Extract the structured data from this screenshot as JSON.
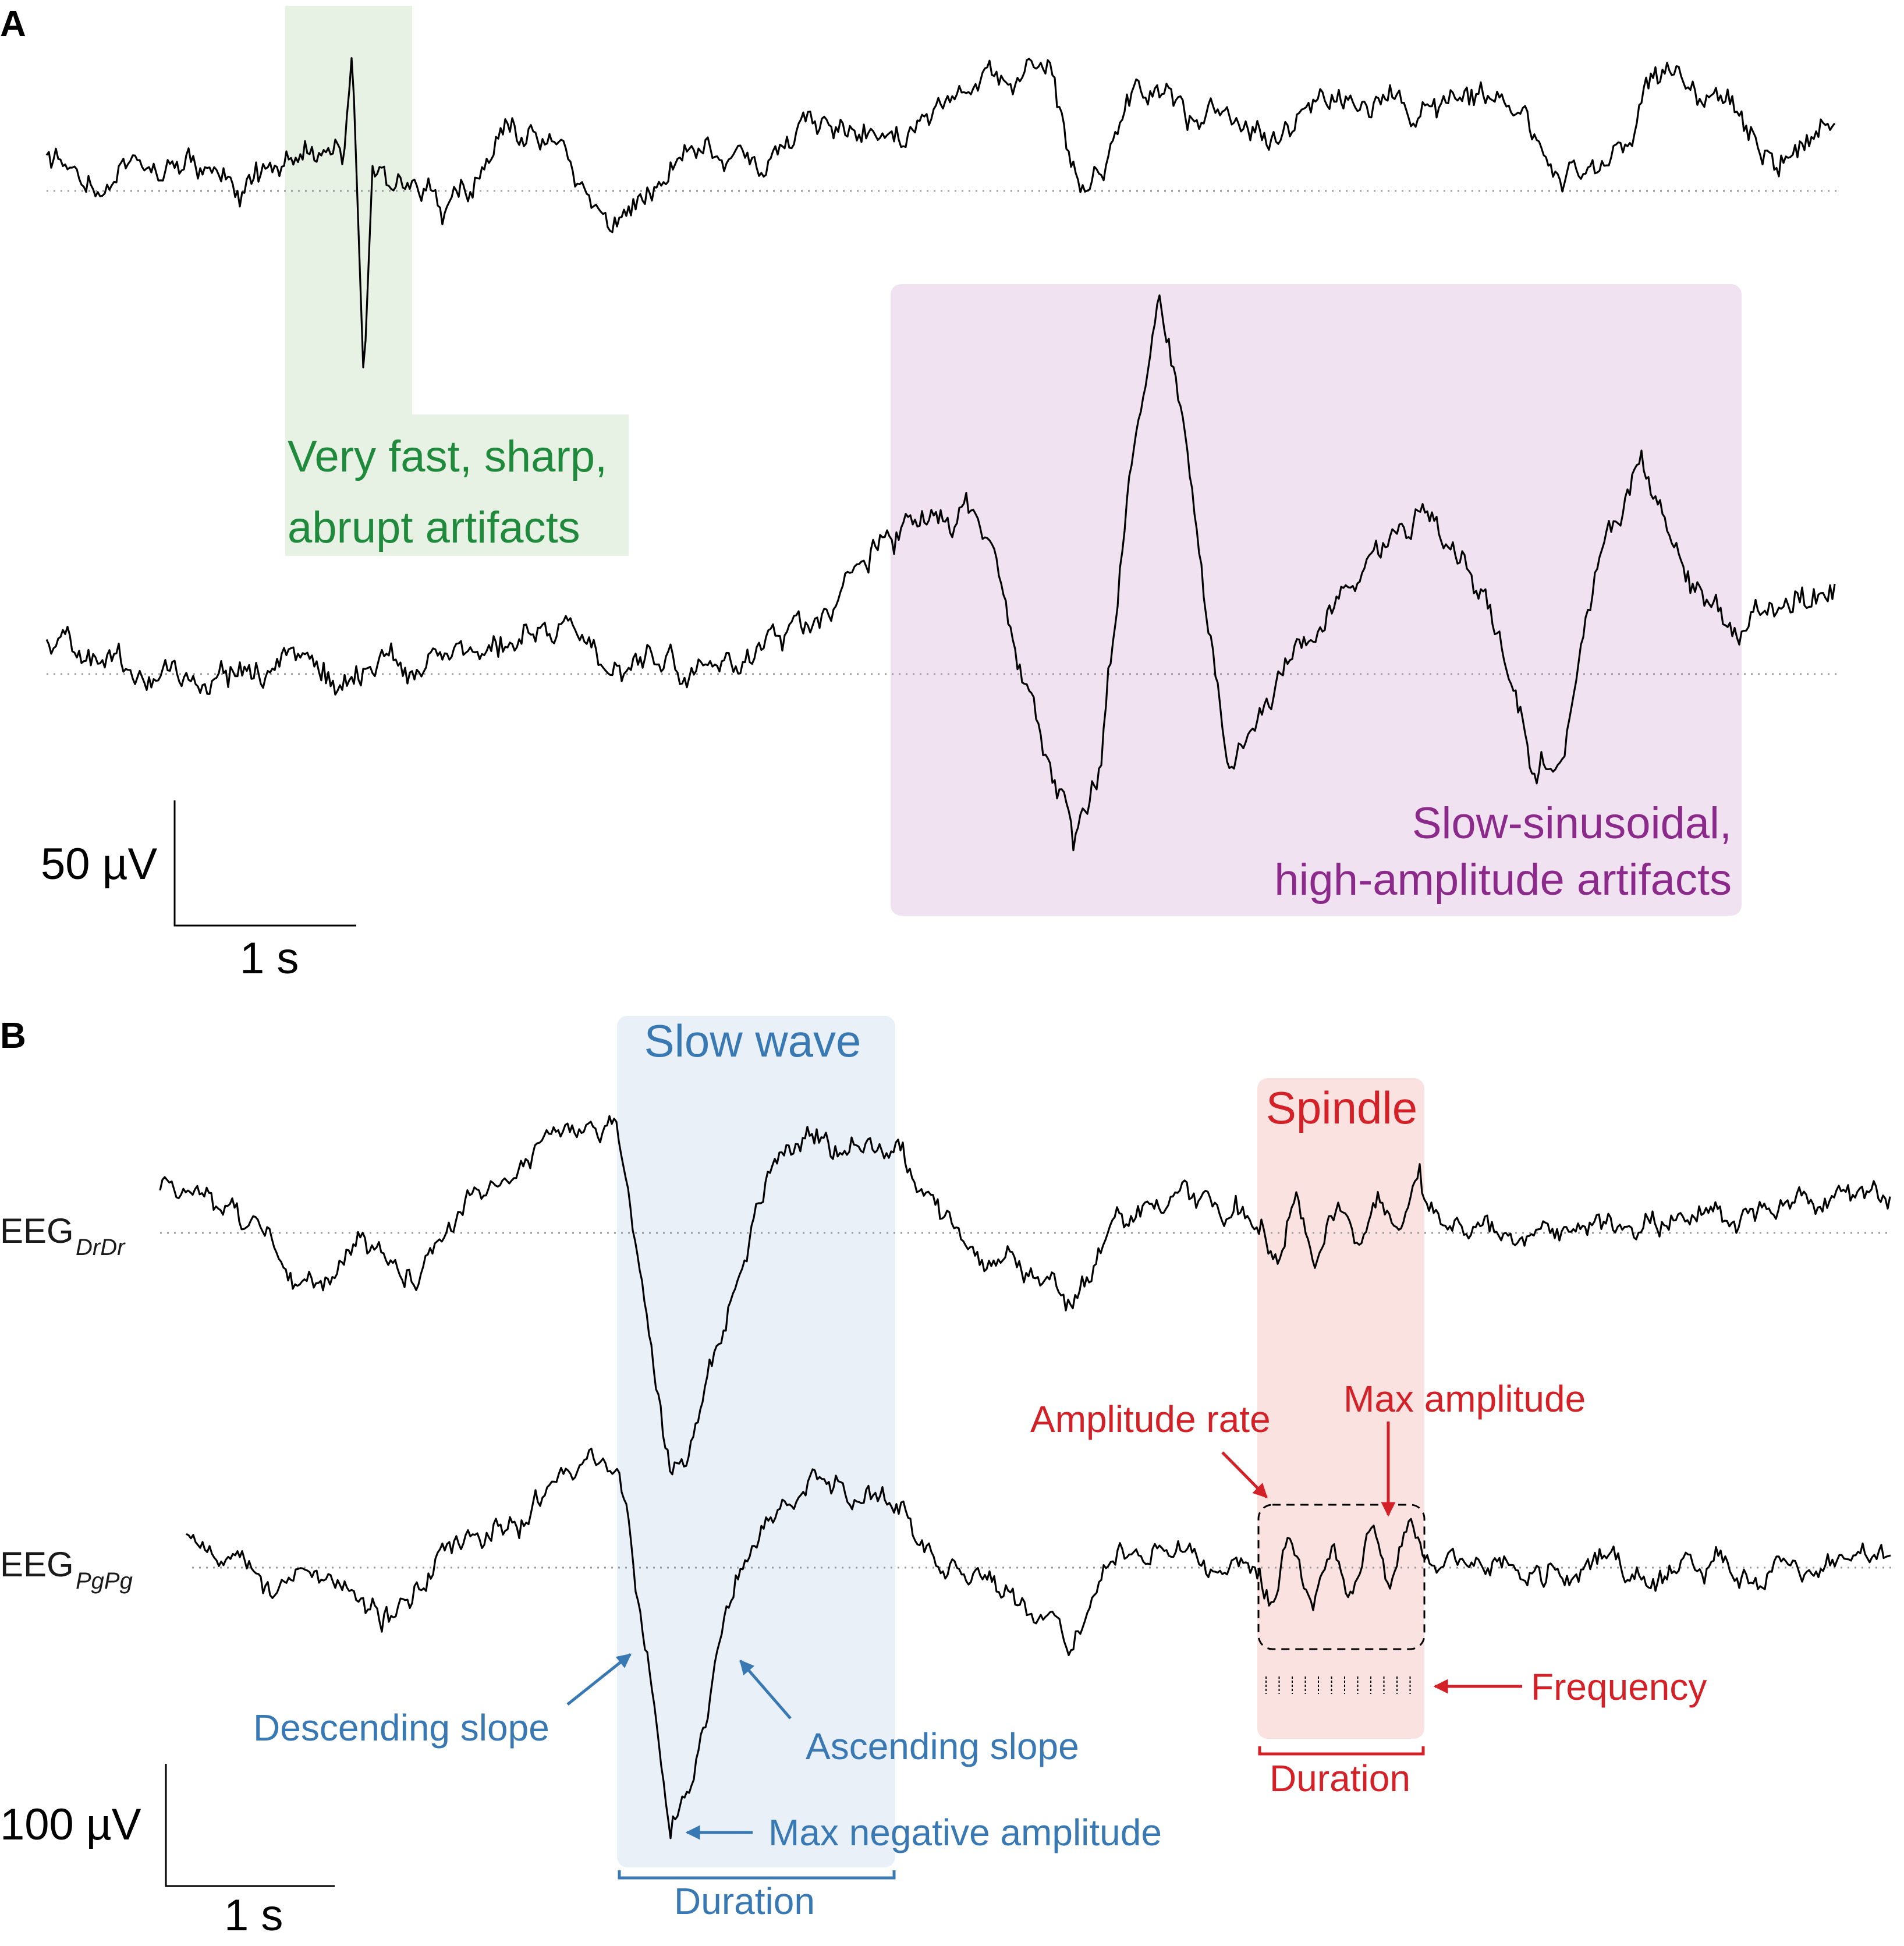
{
  "colors": {
    "green_box": "#e7f2e5",
    "green_text": "#1f8a3c",
    "purple_box": "#f1e2f1",
    "purple_text": "#8b2a8b",
    "blue_box": "#e9f0f8",
    "blue_text": "#3878b3",
    "red_box": "#fae2e0",
    "red_text": "#d42128"
  },
  "panel_a": {
    "letter": "A",
    "green_label_line1": "Very fast, sharp,",
    "green_label_line2": "abrupt artifacts",
    "purple_label_line1": "Slow-sinusoidal,",
    "purple_label_line2": "high-amplitude artifacts",
    "scale_amplitude": "50 µV",
    "scale_time": "1 s"
  },
  "panel_b": {
    "letter": "B",
    "slow_wave_title": "Slow wave",
    "spindle_title": "Spindle",
    "eeg1_main": "EEG",
    "eeg1_sub": "DrDr",
    "eeg2_main": "EEG",
    "eeg2_sub": "PgPg",
    "descending_slope": "Descending slope",
    "ascending_slope": "Ascending slope",
    "max_negative_amplitude": "Max negative amplitude",
    "slow_wave_duration": "Duration",
    "amplitude_rate": "Amplitude rate",
    "max_amplitude": "Max amplitude",
    "frequency": "Frequency",
    "spindle_duration": "Duration",
    "scale_amplitude": "100 µV",
    "scale_time": "1 s"
  }
}
